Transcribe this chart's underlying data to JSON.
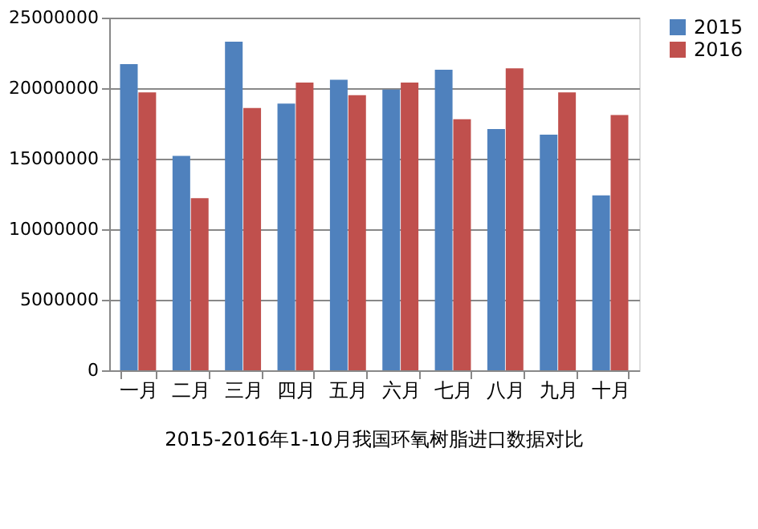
{
  "chart_data": {
    "type": "bar",
    "title": "2015-2016年1-10月我国环氧树脂进口数据对比",
    "categories": [
      "一月",
      "二月",
      "三月",
      "四月",
      "五月",
      "六月",
      "七月",
      "八月",
      "九月",
      "十月"
    ],
    "series": [
      {
        "name": "2015",
        "color": "#4f81bd",
        "values": [
          21700000,
          15200000,
          23300000,
          18900000,
          20600000,
          19900000,
          21300000,
          17100000,
          16700000,
          12400000
        ]
      },
      {
        "name": "2016",
        "color": "#c0504d",
        "values": [
          19700000,
          12200000,
          18600000,
          20400000,
          19500000,
          20400000,
          17800000,
          21400000,
          19700000,
          18100000
        ]
      }
    ],
    "ylim": [
      0,
      25000000
    ],
    "yticks": [
      0,
      5000000,
      10000000,
      15000000,
      20000000,
      25000000
    ],
    "grid": "y",
    "legend": "right"
  }
}
